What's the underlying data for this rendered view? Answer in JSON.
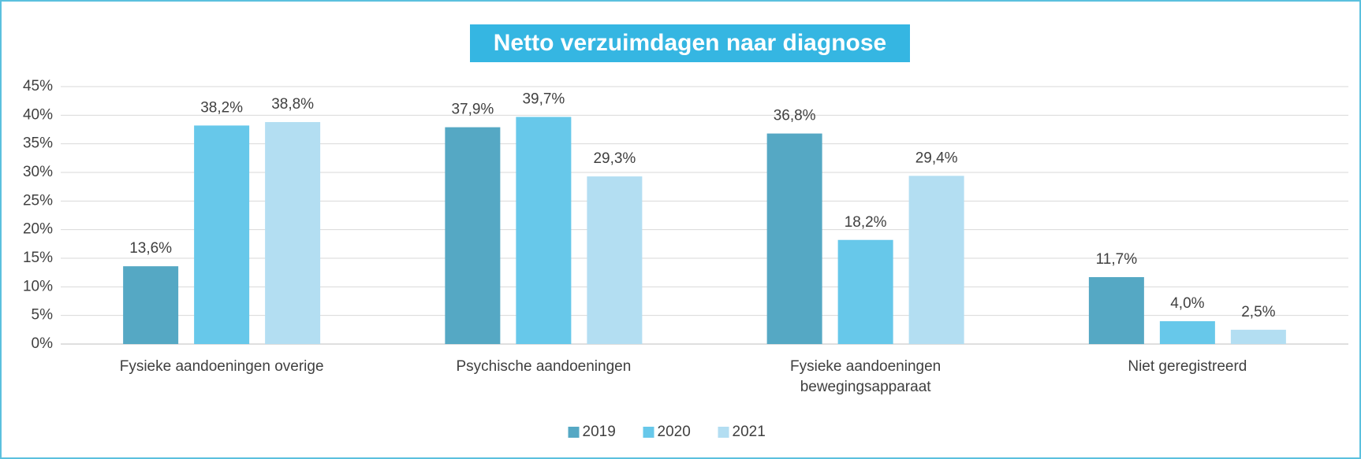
{
  "chart_data": {
    "type": "bar",
    "title": "Netto verzuimdagen naar diagnose",
    "categories": [
      "Fysieke aandoeningen overige",
      "Psychische aandoeningen",
      "Fysieke aandoeningen bewegingsapparaat",
      "Niet geregistreerd"
    ],
    "series": [
      {
        "name": "2019",
        "color": "#55a8c4",
        "values": [
          13.6,
          37.9,
          36.8,
          11.7
        ],
        "value_labels": [
          "13,6%",
          "37,9%",
          "36,8%",
          "11,7%"
        ]
      },
      {
        "name": "2020",
        "color": "#67c8ea",
        "values": [
          38.2,
          39.7,
          18.2,
          4.0
        ],
        "value_labels": [
          "38,2%",
          "39,7%",
          "18,2%",
          "4,0%"
        ]
      },
      {
        "name": "2021",
        "color": "#b3def2",
        "values": [
          38.8,
          29.3,
          29.4,
          2.5
        ],
        "value_labels": [
          "38,8%",
          "29,3%",
          "29,4%",
          "2,5%"
        ]
      }
    ],
    "ylim": [
      0,
      45
    ],
    "yticks": [
      {
        "value": 0,
        "label": "0%"
      },
      {
        "value": 5,
        "label": "5%"
      },
      {
        "value": 10,
        "label": "10%"
      },
      {
        "value": 15,
        "label": "15%"
      },
      {
        "value": 20,
        "label": "20%"
      },
      {
        "value": 25,
        "label": "25%"
      },
      {
        "value": 30,
        "label": "30%"
      },
      {
        "value": 35,
        "label": "35%"
      },
      {
        "value": 40,
        "label": "40%"
      },
      {
        "value": 45,
        "label": "45%"
      }
    ],
    "grid": true,
    "legend": "bottom"
  }
}
